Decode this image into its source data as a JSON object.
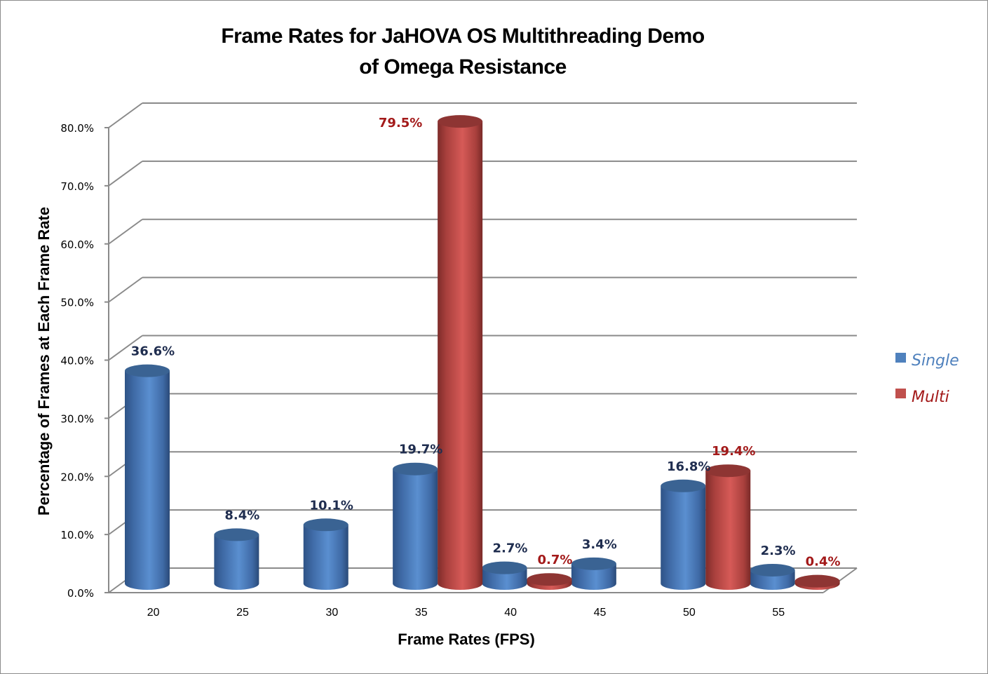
{
  "chart_data": {
    "type": "bar",
    "style": "3d-cylinder",
    "title": "Frame Rates for JaHOVA OS Multithreading Demo of Omega Resistance",
    "title_lines": [
      "Frame Rates for JaHOVA OS Multithreading Demo",
      "of Omega Resistance"
    ],
    "xlabel": "Frame Rates (FPS)",
    "ylabel": "Percentage of Frames at Each Frame Rate",
    "categories": [
      "20",
      "25",
      "30",
      "35",
      "40",
      "45",
      "50",
      "55"
    ],
    "series": [
      {
        "name": "Single",
        "color": "#4F81BD",
        "label_color": "#1F2D4F",
        "values": [
          36.6,
          8.4,
          10.1,
          19.7,
          2.7,
          3.4,
          16.8,
          2.3
        ]
      },
      {
        "name": "Multi",
        "color": "#C0504D",
        "label_color": "#A31A1A",
        "values": [
          0,
          0,
          0,
          79.5,
          0.7,
          0,
          19.4,
          0.4
        ]
      }
    ],
    "data_labels": {
      "Single": [
        "36.6%",
        "8.4%",
        "10.1%",
        "19.7%",
        "2.7%",
        "3.4%",
        "16.8%",
        "2.3%"
      ],
      "Multi": [
        null,
        null,
        null,
        "79.5%",
        "0.7%",
        null,
        "19.4%",
        "0.4%"
      ]
    },
    "yticks": [
      "0.0%",
      "10.0%",
      "20.0%",
      "30.0%",
      "40.0%",
      "50.0%",
      "60.0%",
      "70.0%",
      "80.0%"
    ],
    "ylim": [
      0,
      80
    ],
    "grid": true,
    "legend_position": "right"
  },
  "legend": {
    "items": [
      {
        "label": "Single",
        "color": "#4F81BD",
        "text_color": "#4F81BD"
      },
      {
        "label": "Multi",
        "color": "#C0504D",
        "text_color": "#A31A1A"
      }
    ]
  }
}
